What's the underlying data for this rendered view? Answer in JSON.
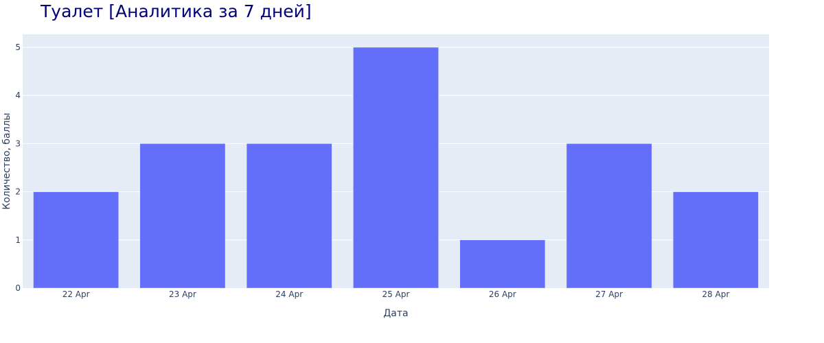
{
  "chart_data": {
    "type": "bar",
    "title": "Туалет [Аналитика за 7 дней]",
    "xlabel": "Дата",
    "ylabel": "Количество, баллы",
    "categories": [
      "22 Apr",
      "23 Apr",
      "24 Apr",
      "25 Apr",
      "26 Apr",
      "27 Apr",
      "28 Apr"
    ],
    "values": [
      2,
      3,
      3,
      5,
      1,
      3,
      2
    ],
    "ylim": [
      0,
      5.27
    ],
    "yticks": [
      0,
      1,
      2,
      3,
      4,
      5
    ],
    "grid": true,
    "colors": {
      "bar": "#636efa",
      "plot_bg": "#e5ecf6",
      "grid": "#ffffff",
      "title": "#00007a",
      "text": "#2a3f5f"
    }
  }
}
